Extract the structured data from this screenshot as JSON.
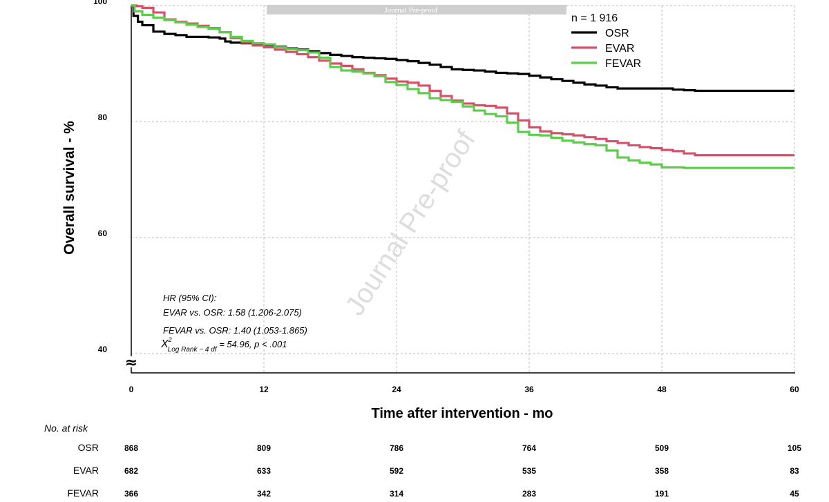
{
  "chart_data": {
    "type": "line",
    "subtype": "kaplan-meier step",
    "ylabel": "Overall survival - %",
    "xlabel": "Time after intervention - mo",
    "xlim": [
      0,
      60
    ],
    "ylim": [
      40,
      100
    ],
    "x_ticks": [
      "0",
      "12",
      "24",
      "36",
      "48",
      "60"
    ],
    "y_ticks": [
      "40",
      "60",
      "80",
      "100"
    ],
    "y_axis_break_symbol": "≈",
    "grid": true,
    "legend_title": "n = 1 916",
    "series": [
      {
        "name": "OSR",
        "color": "#000000",
        "points": [
          [
            0,
            100
          ],
          [
            0.2,
            98.2
          ],
          [
            0.6,
            97.2
          ],
          [
            1,
            96.6
          ],
          [
            2,
            95.5
          ],
          [
            3,
            95.1
          ],
          [
            4,
            94.9
          ],
          [
            5,
            94.6
          ],
          [
            6,
            94.6
          ],
          [
            7,
            94.5
          ],
          [
            8,
            94.3
          ],
          [
            8.5,
            93.8
          ],
          [
            9,
            93.6
          ],
          [
            10,
            93.5
          ],
          [
            11,
            93.4
          ],
          [
            12,
            93.2
          ],
          [
            13,
            92.9
          ],
          [
            14,
            92.6
          ],
          [
            15,
            92.4
          ],
          [
            16,
            92.1
          ],
          [
            17,
            91.8
          ],
          [
            18,
            91.5
          ],
          [
            19,
            91.3
          ],
          [
            20,
            91.1
          ],
          [
            21,
            91.0
          ],
          [
            22,
            90.9
          ],
          [
            23,
            90.8
          ],
          [
            24,
            90.6
          ],
          [
            25,
            90.4
          ],
          [
            26,
            90.1
          ],
          [
            27,
            89.8
          ],
          [
            28,
            89.4
          ],
          [
            29,
            89.0
          ],
          [
            30,
            88.9
          ],
          [
            31,
            88.8
          ],
          [
            32,
            88.6
          ],
          [
            33,
            88.4
          ],
          [
            34,
            88.3
          ],
          [
            35,
            88.2
          ],
          [
            36,
            87.9
          ],
          [
            37,
            87.6
          ],
          [
            38,
            87.3
          ],
          [
            39,
            87.0
          ],
          [
            40,
            86.7
          ],
          [
            41,
            86.4
          ],
          [
            42,
            86.2
          ],
          [
            43,
            85.9
          ],
          [
            44,
            85.7
          ],
          [
            46,
            85.7
          ],
          [
            48,
            85.7
          ],
          [
            49,
            85.5
          ],
          [
            50,
            85.4
          ],
          [
            51,
            85.3
          ],
          [
            52,
            85.3
          ],
          [
            56,
            85.3
          ],
          [
            60,
            85.3
          ]
        ]
      },
      {
        "name": "EVAR",
        "color": "#d94f6a",
        "points": [
          [
            0,
            100
          ],
          [
            0.5,
            99.9
          ],
          [
            1,
            99.6
          ],
          [
            2,
            98.8
          ],
          [
            3,
            97.6
          ],
          [
            4,
            97.2
          ],
          [
            5,
            96.9
          ],
          [
            6,
            96.5
          ],
          [
            7,
            96.1
          ],
          [
            8,
            95.4
          ],
          [
            9,
            94.4
          ],
          [
            10,
            93.6
          ],
          [
            11,
            93.1
          ],
          [
            12,
            92.8
          ],
          [
            13,
            92.4
          ],
          [
            14,
            92.0
          ],
          [
            15,
            91.6
          ],
          [
            16,
            91.1
          ],
          [
            17,
            90.5
          ],
          [
            18,
            90.0
          ],
          [
            19,
            89.6
          ],
          [
            20,
            89.0
          ],
          [
            21,
            88.4
          ],
          [
            22,
            88.0
          ],
          [
            23,
            87.4
          ],
          [
            24,
            86.9
          ],
          [
            25,
            86.7
          ],
          [
            26,
            86.2
          ],
          [
            27,
            85.3
          ],
          [
            28,
            84.4
          ],
          [
            29,
            83.6
          ],
          [
            30,
            83.1
          ],
          [
            31,
            82.8
          ],
          [
            32,
            82.7
          ],
          [
            33,
            82.4
          ],
          [
            34,
            81.4
          ],
          [
            35,
            80.2
          ],
          [
            36,
            79.0
          ],
          [
            37,
            78.3
          ],
          [
            38,
            78.0
          ],
          [
            39,
            77.8
          ],
          [
            40,
            77.6
          ],
          [
            41,
            77.3
          ],
          [
            42,
            77.0
          ],
          [
            43,
            76.6
          ],
          [
            44,
            76.3
          ],
          [
            45,
            75.9
          ],
          [
            46,
            75.6
          ],
          [
            47,
            75.4
          ],
          [
            48,
            75.1
          ],
          [
            49,
            74.9
          ],
          [
            50,
            74.5
          ],
          [
            51,
            74.2
          ],
          [
            53,
            74.2
          ],
          [
            56,
            74.2
          ],
          [
            60,
            74.2
          ]
        ]
      },
      {
        "name": "FEVAR",
        "color": "#5ccc4a",
        "points": [
          [
            0,
            100
          ],
          [
            0.3,
            99.0
          ],
          [
            1,
            98.4
          ],
          [
            2,
            97.9
          ],
          [
            3,
            97.5
          ],
          [
            4,
            97.1
          ],
          [
            5,
            96.7
          ],
          [
            6,
            96.3
          ],
          [
            7,
            96.0
          ],
          [
            8,
            95.4
          ],
          [
            9,
            94.6
          ],
          [
            10,
            93.9
          ],
          [
            11,
            93.5
          ],
          [
            12,
            93.3
          ],
          [
            13,
            92.8
          ],
          [
            14,
            92.5
          ],
          [
            15,
            92.3
          ],
          [
            16,
            91.9
          ],
          [
            17,
            91.0
          ],
          [
            18,
            89.4
          ],
          [
            19,
            88.8
          ],
          [
            20,
            88.6
          ],
          [
            21,
            88.3
          ],
          [
            22,
            87.8
          ],
          [
            23,
            86.8
          ],
          [
            24,
            86.3
          ],
          [
            25,
            85.6
          ],
          [
            26,
            84.9
          ],
          [
            27,
            84.0
          ],
          [
            28,
            83.7
          ],
          [
            29,
            83.4
          ],
          [
            30,
            82.6
          ],
          [
            31,
            81.9
          ],
          [
            32,
            81.3
          ],
          [
            33,
            80.9
          ],
          [
            34,
            79.8
          ],
          [
            35,
            78.2
          ],
          [
            36,
            77.7
          ],
          [
            37,
            77.6
          ],
          [
            38,
            77.2
          ],
          [
            39,
            76.7
          ],
          [
            40,
            76.4
          ],
          [
            41,
            76.1
          ],
          [
            42,
            75.9
          ],
          [
            43,
            75.0
          ],
          [
            44,
            73.8
          ],
          [
            45,
            73.3
          ],
          [
            46,
            72.9
          ],
          [
            47,
            72.6
          ],
          [
            48,
            72.1
          ],
          [
            50,
            72.0
          ],
          [
            52,
            72.0
          ],
          [
            56,
            72.0
          ],
          [
            60,
            72.0
          ]
        ]
      }
    ],
    "annotation_lines": [
      "HR (95% CI):",
      "EVAR vs. OSR: 1.58 (1.206-2.075)",
      "FEVAR vs. OSR: 1.40 (1.053-1.865)"
    ],
    "stat_symbol": "X",
    "stat_superscript": "2",
    "stat_subscript": "Log Rank − 4 df",
    "stat_value": " = 54.96, p < .001",
    "risk_table": {
      "title": "No. at risk",
      "times": [
        "0",
        "12",
        "24",
        "36",
        "48",
        "60"
      ],
      "rows": [
        {
          "label": "OSR",
          "values": [
            "868",
            "809",
            "786",
            "764",
            "509",
            "105"
          ]
        },
        {
          "label": "EVAR",
          "values": [
            "682",
            "633",
            "592",
            "535",
            "358",
            "83"
          ]
        },
        {
          "label": "FEVAR",
          "values": [
            "366",
            "342",
            "314",
            "283",
            "191",
            "45"
          ]
        }
      ]
    }
  },
  "banner_text": "Journal Pre-proof",
  "watermark_text": "Journal Pre-proof"
}
